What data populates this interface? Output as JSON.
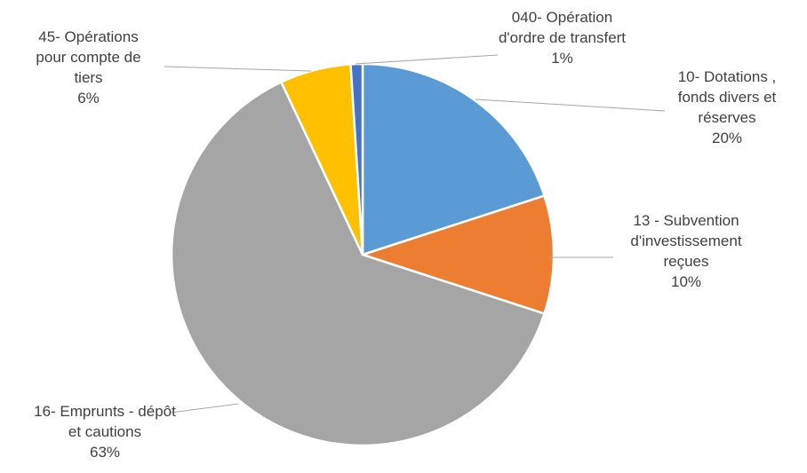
{
  "chart_data": {
    "type": "pie",
    "categories": [
      "10- Dotations , fonds divers et réserves",
      "13 - Subvention d'investissement reçues",
      "16- Emprunts - dépôt et cautions",
      "45- Opérations pour compte de tiers",
      "040- Opération d'ordre de transfert"
    ],
    "values": [
      20,
      10,
      63,
      6,
      1
    ],
    "value_labels": [
      "20%",
      "10%",
      "63%",
      "6%",
      "1%"
    ],
    "colors": [
      "#5b9bd5",
      "#ed7d31",
      "#a5a5a5",
      "#ffc000",
      "#4472c4"
    ]
  }
}
